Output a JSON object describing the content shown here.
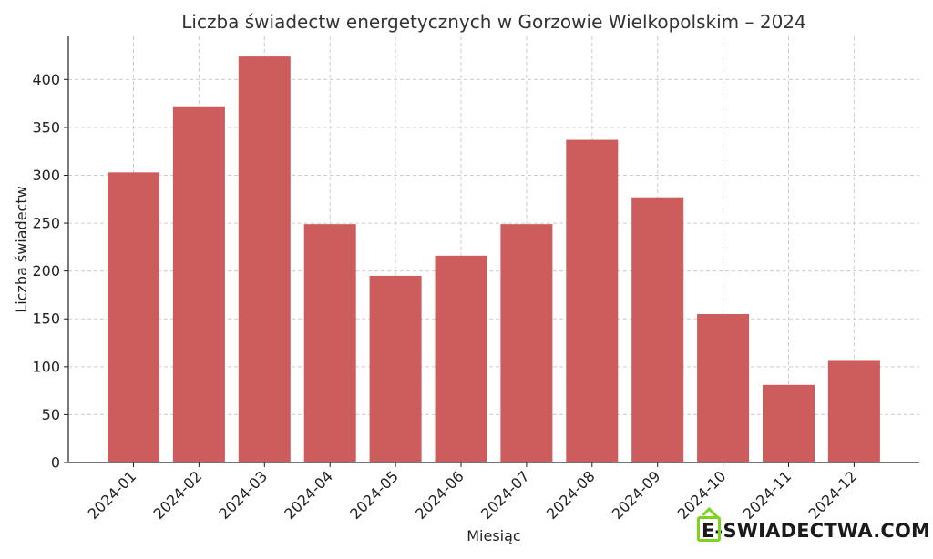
{
  "chart_data": {
    "type": "bar",
    "title": "Liczba świadectw energetycznych w Gorzowie Wielkopolskim – 2024",
    "xlabel": "Miesiąc",
    "ylabel": "Liczba świadectw",
    "categories": [
      "2024-01",
      "2024-02",
      "2024-03",
      "2024-04",
      "2024-05",
      "2024-06",
      "2024-07",
      "2024-08",
      "2024-09",
      "2024-10",
      "2024-11",
      "2024-12"
    ],
    "values": [
      303,
      372,
      424,
      249,
      195,
      216,
      249,
      337,
      277,
      155,
      81,
      107
    ],
    "ylim": [
      0,
      445
    ],
    "yticks": [
      0,
      50,
      100,
      150,
      200,
      250,
      300,
      350,
      400
    ],
    "grid": true,
    "bar_color": "#cd5c5c"
  },
  "logo": {
    "e_letter": "E",
    "rest": "-SWIADECTWA.COM",
    "accent": "#7ed321"
  }
}
